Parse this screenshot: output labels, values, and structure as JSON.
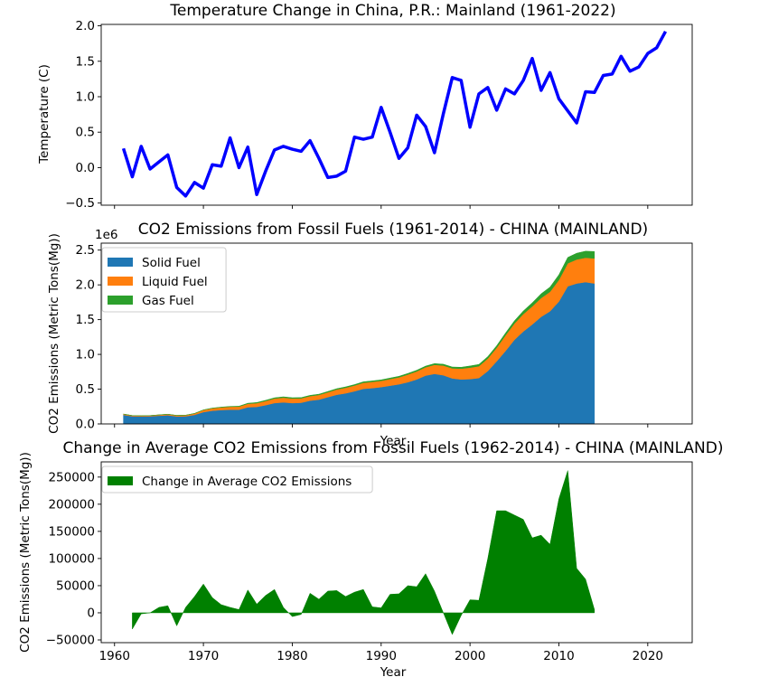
{
  "chart_data": [
    {
      "type": "line",
      "title": "Temperature Change in China, P.R.: Mainland (1961-2022)",
      "xlabel": "",
      "ylabel": "Temperature (C)",
      "xlim": [
        1958.5,
        2025
      ],
      "ylim": [
        -0.53,
        2.02
      ],
      "yticks": [
        -0.5,
        0.0,
        0.5,
        1.0,
        1.5,
        2.0
      ],
      "ytick_labels": [
        "−0.5",
        "0.0",
        "0.5",
        "1.0",
        "1.5",
        "2.0"
      ],
      "xticks": [
        1960,
        1970,
        1980,
        1990,
        2000,
        2010,
        2020
      ],
      "xtick_labels": [],
      "color": "#0000ff",
      "x": [
        1961,
        1962,
        1963,
        1964,
        1965,
        1966,
        1967,
        1968,
        1969,
        1970,
        1971,
        1972,
        1973,
        1974,
        1975,
        1976,
        1977,
        1978,
        1979,
        1980,
        1981,
        1982,
        1983,
        1984,
        1985,
        1986,
        1987,
        1988,
        1989,
        1990,
        1991,
        1992,
        1993,
        1994,
        1995,
        1996,
        1997,
        1998,
        1999,
        2000,
        2001,
        2002,
        2003,
        2004,
        2005,
        2006,
        2007,
        2008,
        2009,
        2010,
        2011,
        2012,
        2013,
        2014,
        2015,
        2016,
        2017,
        2018,
        2019,
        2020,
        2021,
        2022
      ],
      "y": [
        0.27,
        -0.13,
        0.3,
        -0.02,
        0.08,
        0.18,
        -0.28,
        -0.4,
        -0.21,
        -0.29,
        0.04,
        0.02,
        0.42,
        0.0,
        0.29,
        -0.38,
        -0.05,
        0.25,
        0.3,
        0.26,
        0.23,
        0.38,
        0.13,
        -0.14,
        -0.12,
        -0.05,
        0.43,
        0.4,
        0.43,
        0.85,
        0.5,
        0.13,
        0.28,
        0.74,
        0.58,
        0.21,
        0.76,
        1.27,
        1.23,
        0.57,
        1.04,
        1.13,
        0.81,
        1.11,
        1.04,
        1.23,
        1.54,
        1.09,
        1.34,
        0.97,
        0.8,
        0.63,
        1.07,
        1.06,
        1.3,
        1.32,
        1.57,
        1.36,
        1.42,
        1.61,
        1.69,
        1.92
      ]
    },
    {
      "type": "area",
      "stacked": true,
      "title": "CO2 Emissions from Fossil Fuels (1961-2014) - CHINA (MAINLAND)",
      "xlabel": "Year",
      "ylabel": "CO2 Emissions (Metric Tons(Mg))",
      "scale_label": "1e6",
      "xlim": [
        1958.5,
        2025
      ],
      "ylim": [
        0,
        2600000
      ],
      "yticks": [
        0,
        500000,
        1000000,
        1500000,
        2000000,
        2500000
      ],
      "ytick_labels": [
        "0.0",
        "0.5",
        "1.0",
        "1.5",
        "2.0",
        "2.5"
      ],
      "xticks": [
        1960,
        1970,
        1980,
        1990,
        2000,
        2010,
        2020
      ],
      "legend": "top-left",
      "x": [
        1961,
        1962,
        1963,
        1964,
        1965,
        1966,
        1967,
        1968,
        1969,
        1970,
        1971,
        1972,
        1973,
        1974,
        1975,
        1976,
        1977,
        1978,
        1979,
        1980,
        1981,
        1982,
        1983,
        1984,
        1985,
        1986,
        1987,
        1988,
        1989,
        1990,
        1991,
        1992,
        1993,
        1994,
        1995,
        1996,
        1997,
        1998,
        1999,
        2000,
        2001,
        2002,
        2003,
        2004,
        2005,
        2006,
        2007,
        2008,
        2009,
        2010,
        2011,
        2012,
        2013,
        2014
      ],
      "series": [
        {
          "name": "Solid Fuel",
          "color": "#1f77b4",
          "values": [
            130000,
            110000,
            108000,
            110000,
            118000,
            125000,
            108000,
            110000,
            130000,
            170000,
            190000,
            200000,
            205000,
            205000,
            240000,
            245000,
            270000,
            300000,
            310000,
            300000,
            305000,
            335000,
            350000,
            385000,
            420000,
            440000,
            470000,
            505000,
            515000,
            530000,
            550000,
            570000,
            600000,
            640000,
            695000,
            720000,
            700000,
            655000,
            640000,
            645000,
            660000,
            760000,
            900000,
            1050000,
            1210000,
            1330000,
            1430000,
            1540000,
            1620000,
            1760000,
            1980000,
            2020000,
            2040000,
            2020000
          ]
        },
        {
          "name": "Liquid Fuel",
          "color": "#ff7f0e",
          "values": [
            12000,
            10000,
            10000,
            10000,
            12000,
            14000,
            14000,
            15000,
            20000,
            30000,
            35000,
            38000,
            42000,
            44000,
            50000,
            54000,
            60000,
            65000,
            68000,
            65000,
            63000,
            65000,
            67000,
            70000,
            75000,
            80000,
            83000,
            87000,
            90000,
            90000,
            95000,
            100000,
            110000,
            115000,
            120000,
            130000,
            140000,
            145000,
            155000,
            165000,
            170000,
            180000,
            195000,
            225000,
            235000,
            250000,
            260000,
            270000,
            280000,
            310000,
            330000,
            345000,
            350000,
            360000
          ]
        },
        {
          "name": "Gas Fuel",
          "color": "#2ca02c",
          "values": [
            500,
            500,
            500,
            600,
            1000,
            1200,
            1300,
            1400,
            1500,
            2000,
            3000,
            4000,
            5000,
            6000,
            8000,
            9000,
            10000,
            11000,
            12000,
            12000,
            11000,
            11000,
            11000,
            12000,
            12000,
            13000,
            13000,
            14000,
            14000,
            14000,
            15000,
            15000,
            16000,
            17000,
            17000,
            18000,
            19000,
            19000,
            20000,
            24000,
            26000,
            28000,
            30000,
            33000,
            38000,
            45000,
            52000,
            62000,
            68000,
            75000,
            85000,
            90000,
            95000,
            100000
          ]
        }
      ]
    },
    {
      "type": "area",
      "title": "Change in Average CO2 Emissions from Fossil Fuels (1962-2014) - CHINA (MAINLAND)",
      "xlabel": "Year",
      "ylabel": "CO2 Emissions (Metric Tons(Mg))",
      "xlim": [
        1958.5,
        2025
      ],
      "ylim": [
        -55000,
        278000
      ],
      "yticks": [
        -50000,
        0,
        50000,
        100000,
        150000,
        200000,
        250000
      ],
      "ytick_labels": [
        "−50000",
        "0",
        "50000",
        "100000",
        "150000",
        "200000",
        "250000"
      ],
      "xticks": [
        1960,
        1970,
        1980,
        1990,
        2000,
        2010,
        2020
      ],
      "xtick_labels": [
        "1960",
        "1970",
        "1980",
        "1990",
        "2000",
        "2010",
        "2020"
      ],
      "legend": "top-left",
      "series": [
        {
          "name": "Change in Average CO2 Emissions",
          "color": "#008000",
          "x": [
            1962,
            1963,
            1964,
            1965,
            1966,
            1967,
            1968,
            1969,
            1970,
            1971,
            1972,
            1973,
            1974,
            1975,
            1976,
            1977,
            1978,
            1979,
            1980,
            1981,
            1982,
            1983,
            1984,
            1985,
            1986,
            1987,
            1988,
            1989,
            1990,
            1991,
            1992,
            1993,
            1994,
            1995,
            1996,
            1997,
            1998,
            1999,
            2000,
            2001,
            2002,
            2003,
            2004,
            2005,
            2006,
            2007,
            2008,
            2009,
            2010,
            2011,
            2012,
            2013,
            2014
          ],
          "values": [
            -30000,
            -2000,
            0,
            10000,
            13000,
            -24000,
            10000,
            30000,
            53000,
            28000,
            15000,
            10000,
            6000,
            42000,
            16000,
            32000,
            43000,
            10000,
            -7000,
            -3000,
            36000,
            25000,
            40000,
            41000,
            30000,
            38000,
            43000,
            11000,
            9000,
            34000,
            35000,
            50000,
            48000,
            72000,
            40000,
            0,
            -40000,
            -5000,
            24000,
            23000,
            100000,
            188000,
            188000,
            180000,
            172000,
            138000,
            143000,
            126000,
            210000,
            262000,
            82000,
            62000,
            6000
          ]
        }
      ]
    }
  ]
}
